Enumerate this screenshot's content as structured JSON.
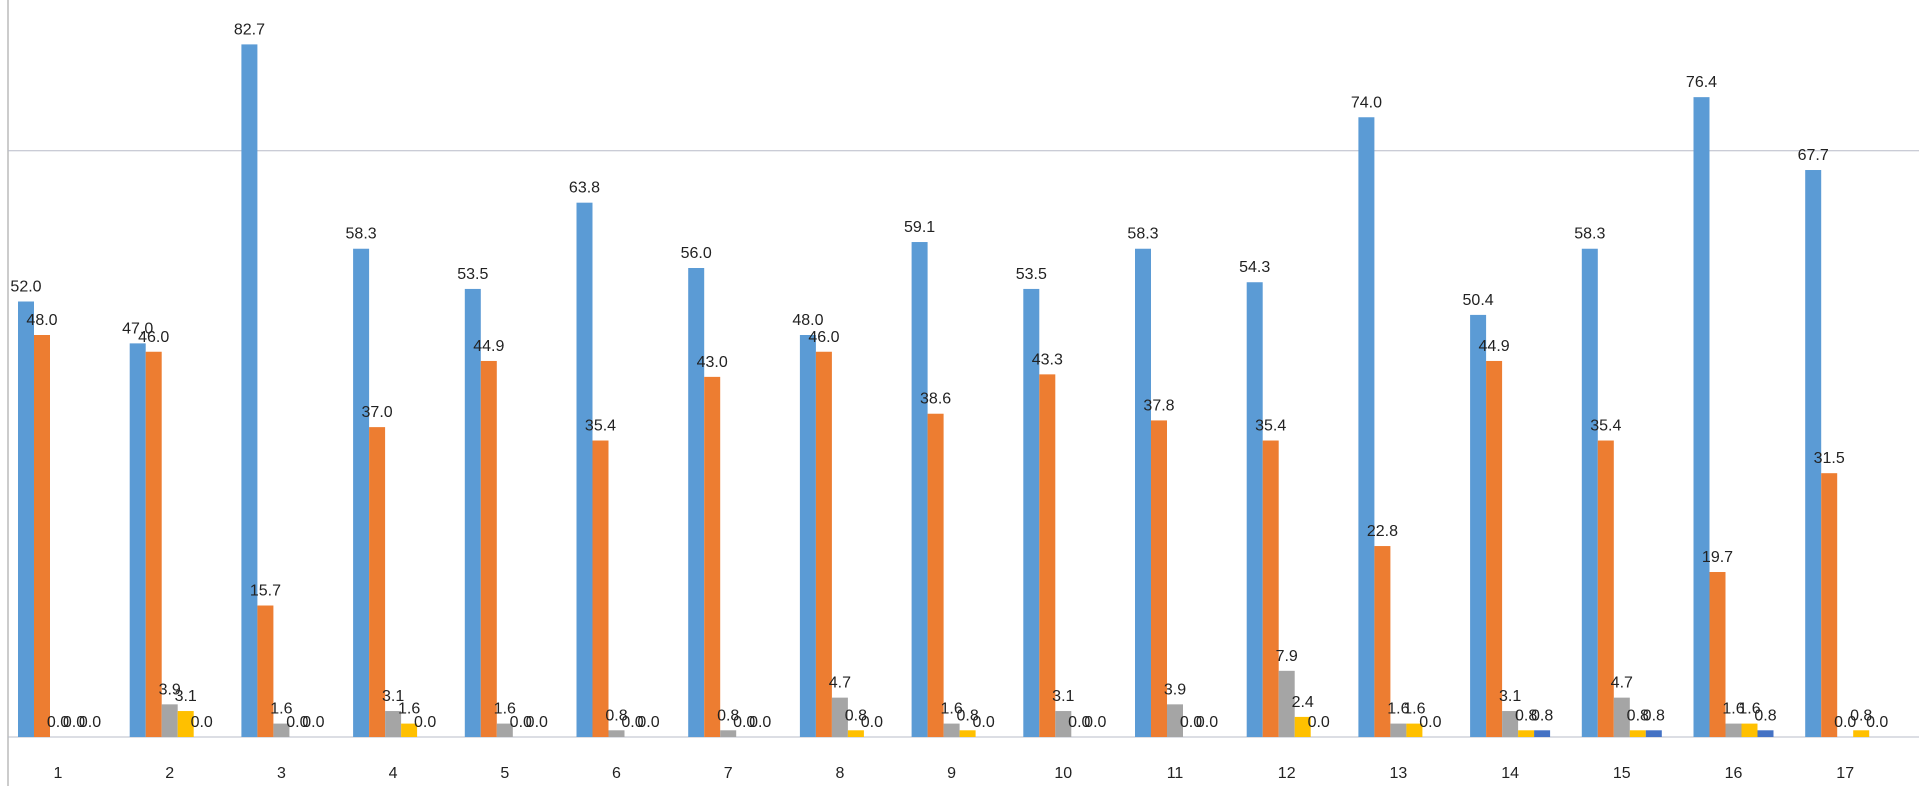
{
  "chart_data": {
    "type": "bar",
    "categories": [
      "1",
      "2",
      "3",
      "4",
      "5",
      "6",
      "7",
      "8",
      "9",
      "10",
      "11",
      "12",
      "13",
      "14",
      "15",
      "16",
      "17"
    ],
    "series": [
      {
        "color": "#5b9bd5",
        "values": [
          52.0,
          47.0,
          82.7,
          58.3,
          53.5,
          63.8,
          56.0,
          48.0,
          59.1,
          53.5,
          58.3,
          54.3,
          74.0,
          50.4,
          58.3,
          76.4,
          67.7
        ],
        "value_labels": [
          "52.0",
          "47.0",
          "82.7",
          "58.3",
          "53.5",
          "63.8",
          "56.0",
          "48.0",
          "59.1",
          "53.5",
          "58.3",
          "54.3",
          "74.0",
          "50.4",
          "58.3",
          "76.4",
          "67.7"
        ]
      },
      {
        "color": "#ed7d31",
        "values": [
          48.0,
          46.0,
          15.7,
          37.0,
          44.9,
          35.4,
          43.0,
          46.0,
          38.6,
          43.3,
          37.8,
          35.4,
          22.8,
          44.9,
          35.4,
          19.7,
          31.5
        ],
        "value_labels": [
          "48.0",
          "46.0",
          "15.7",
          "37.0",
          "44.9",
          "35.4",
          "43.0",
          "46.0",
          "38.6",
          "43.3",
          "37.8",
          "35.4",
          "22.8",
          "44.9",
          "35.4",
          "19.7",
          "31.5"
        ]
      },
      {
        "color": "#a5a5a5",
        "values": [
          0.0,
          3.9,
          1.6,
          3.1,
          1.6,
          0.8,
          0.8,
          4.7,
          1.6,
          3.1,
          3.9,
          7.9,
          1.6,
          3.1,
          4.7,
          1.6,
          0.0
        ],
        "value_labels": [
          "0.0",
          "3.9",
          "1.6",
          "3.1",
          "1.6",
          "0.8",
          "0.8",
          "4.7",
          "1.6",
          "3.1",
          "3.9",
          "7.9",
          "1.6",
          "3.1",
          "4.7",
          "1.6",
          "0.0"
        ]
      },
      {
        "color": "#ffc000",
        "values": [
          0.0,
          3.1,
          0.0,
          1.6,
          0.0,
          0.0,
          0.0,
          0.8,
          0.8,
          0.0,
          0.0,
          2.4,
          1.6,
          0.8,
          0.8,
          1.6,
          0.8
        ],
        "value_labels": [
          "0.0",
          "3.1",
          "0.0",
          "1.6",
          "0.0",
          "0.0",
          "0.0",
          "0.8",
          "0.8",
          "0.0",
          "0.0",
          "2.4",
          "1.6",
          "0.8",
          "0.8",
          "1.6",
          "0.8"
        ]
      },
      {
        "color": "#4472c4",
        "values": [
          0.0,
          0.0,
          0.0,
          0.0,
          0.0,
          0.0,
          0.0,
          0.0,
          0.0,
          0.0,
          0.0,
          0.0,
          0.0,
          0.8,
          0.8,
          0.8,
          0.0
        ],
        "value_labels": [
          "0.0",
          "0.0",
          "0.0",
          "0.0",
          "0.0",
          "0.0",
          "0.0",
          "0.0",
          "0.0",
          "0.0",
          "0.0",
          "0.0",
          "0.0",
          "0.8",
          "0.8",
          "0.8",
          "0.0"
        ]
      }
    ],
    "ylim": [
      0,
      88
    ],
    "yticks": [
      0,
      70
    ],
    "grid": true
  }
}
